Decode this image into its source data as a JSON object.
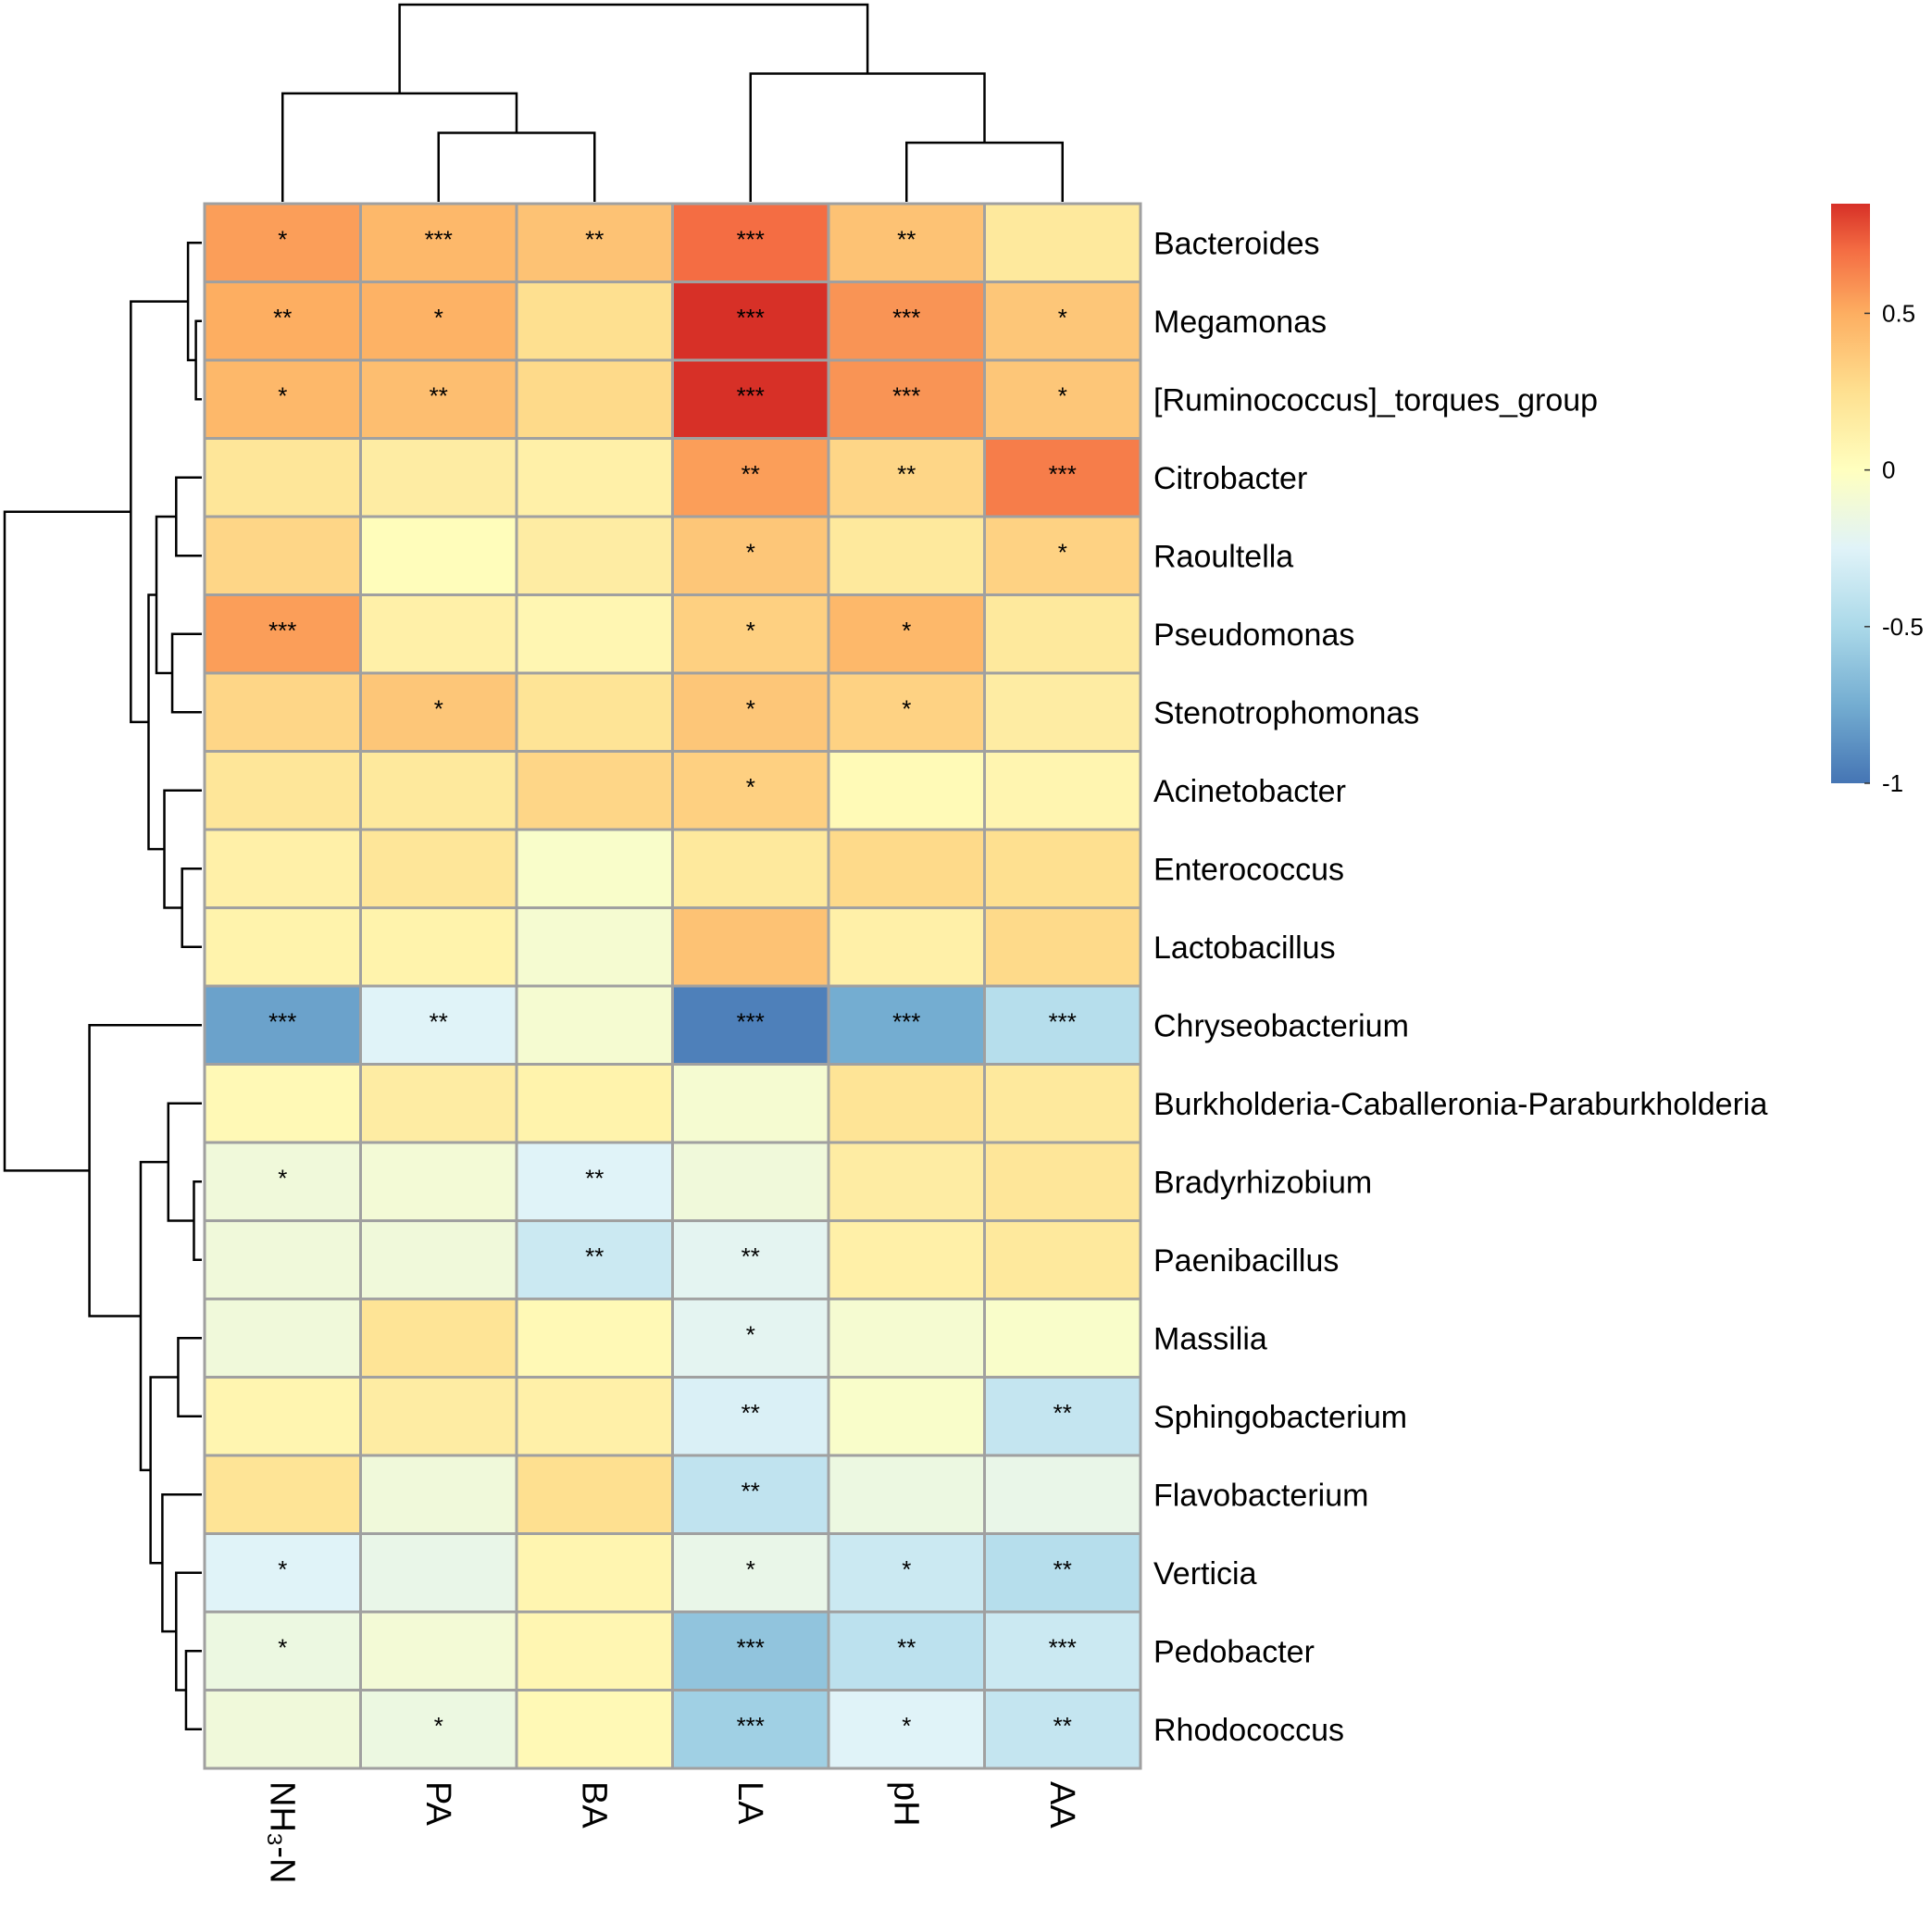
{
  "chart_data": {
    "type": "heatmap",
    "title": "",
    "xlabel": "",
    "ylabel": "",
    "columns": [
      "NH₃-N",
      "PA",
      "BA",
      "LA",
      "pH",
      "AA"
    ],
    "rows": [
      "Bacteroides",
      "Megamonas",
      "[Ruminococcus]_torques_group",
      "Citrobacter",
      "Raoultella",
      "Pseudomonas",
      "Stenotrophomonas",
      "Acinetobacter",
      "Enterococcus",
      "Lactobacillus",
      "Chryseobacterium",
      "Burkholderia-Caballeronia-Paraburkholderia",
      "Bradyrhizobium",
      "Paenibacillus",
      "Massilia",
      "Sphingobacterium",
      "Flavobacterium",
      "Verticia",
      "Pedobacter",
      "Rhodococcus"
    ],
    "values": [
      [
        0.55,
        0.45,
        0.4,
        0.7,
        0.4,
        0.18
      ],
      [
        0.5,
        0.48,
        0.25,
        0.85,
        0.58,
        0.38
      ],
      [
        0.45,
        0.42,
        0.28,
        0.86,
        0.58,
        0.38
      ],
      [
        0.2,
        0.15,
        0.12,
        0.55,
        0.3,
        0.65
      ],
      [
        0.3,
        0.02,
        0.15,
        0.38,
        0.18,
        0.32
      ],
      [
        0.55,
        0.12,
        0.07,
        0.33,
        0.45,
        0.18
      ],
      [
        0.3,
        0.38,
        0.22,
        0.38,
        0.32,
        0.15
      ],
      [
        0.2,
        0.18,
        0.3,
        0.33,
        0.04,
        0.08
      ],
      [
        0.12,
        0.2,
        -0.05,
        0.18,
        0.28,
        0.25
      ],
      [
        0.1,
        0.1,
        -0.08,
        0.4,
        0.12,
        0.28
      ],
      [
        -0.8,
        -0.25,
        -0.08,
        -0.95,
        -0.75,
        -0.45
      ],
      [
        0.05,
        0.15,
        0.1,
        -0.08,
        0.22,
        0.18
      ],
      [
        -0.12,
        -0.1,
        -0.25,
        -0.12,
        0.15,
        0.2
      ],
      [
        -0.12,
        -0.12,
        -0.35,
        -0.22,
        0.12,
        0.18
      ],
      [
        -0.12,
        0.22,
        0.05,
        -0.22,
        -0.08,
        -0.05
      ],
      [
        0.08,
        0.15,
        0.12,
        -0.28,
        -0.05,
        -0.38
      ],
      [
        0.22,
        -0.12,
        0.25,
        -0.4,
        -0.15,
        -0.18
      ],
      [
        -0.25,
        -0.18,
        0.08,
        -0.18,
        -0.35,
        -0.45
      ],
      [
        -0.15,
        -0.1,
        0.07,
        -0.62,
        -0.42,
        -0.35
      ],
      [
        -0.12,
        -0.15,
        0.05,
        -0.55,
        -0.25,
        -0.38
      ]
    ],
    "significance": [
      [
        "*",
        "***",
        "**",
        "***",
        "**",
        ""
      ],
      [
        "**",
        "*",
        "",
        "***",
        "***",
        "*"
      ],
      [
        "*",
        "**",
        "",
        "***",
        "***",
        "*"
      ],
      [
        "",
        "",
        "",
        "**",
        "**",
        "***"
      ],
      [
        "",
        "",
        "",
        "*",
        "",
        "*"
      ],
      [
        "***",
        "",
        "",
        "*",
        "*",
        ""
      ],
      [
        "",
        "*",
        "",
        "*",
        "*",
        ""
      ],
      [
        "",
        "",
        "",
        "*",
        "",
        ""
      ],
      [
        "",
        "",
        "",
        "",
        "",
        ""
      ],
      [
        "",
        "",
        "",
        "",
        "",
        ""
      ],
      [
        "***",
        "**",
        "",
        "***",
        "***",
        "***"
      ],
      [
        "",
        "",
        "",
        "",
        "",
        ""
      ],
      [
        "*",
        "",
        "**",
        "",
        "",
        ""
      ],
      [
        "",
        "",
        "**",
        "**",
        "",
        ""
      ],
      [
        "",
        "",
        "",
        "*",
        "",
        ""
      ],
      [
        "",
        "",
        "",
        "**",
        "",
        "**"
      ],
      [
        "",
        "",
        "",
        "**",
        "",
        ""
      ],
      [
        "*",
        "",
        "",
        "*",
        "*",
        "**"
      ],
      [
        "*",
        "",
        "",
        "***",
        "**",
        "***"
      ],
      [
        "",
        "*",
        "",
        "***",
        "*",
        "**"
      ]
    ],
    "colorscale": {
      "range": [
        -1,
        0.85
      ],
      "stops": [
        {
          "value": -1,
          "color": "#4575b4"
        },
        {
          "value": -0.75,
          "color": "#74add1"
        },
        {
          "value": -0.5,
          "color": "#abd9e9"
        },
        {
          "value": -0.25,
          "color": "#e0f3f8"
        },
        {
          "value": 0,
          "color": "#ffffbf"
        },
        {
          "value": 0.25,
          "color": "#fee090"
        },
        {
          "value": 0.5,
          "color": "#fdae61"
        },
        {
          "value": 0.7,
          "color": "#f46d43"
        },
        {
          "value": 0.85,
          "color": "#d73027"
        }
      ]
    },
    "legend": {
      "position": "right",
      "ticks": [
        {
          "value": 0.5,
          "label": "0.5"
        },
        {
          "value": 0,
          "label": "0"
        },
        {
          "value": -0.5,
          "label": "-0.5"
        },
        {
          "value": -1,
          "label": "-1"
        }
      ]
    },
    "col_dendrogram": {
      "order": [
        "NH₃-N",
        "PA",
        "BA",
        "LA",
        "pH",
        "AA"
      ],
      "merges": [
        {
          "a": "PA",
          "b": "BA",
          "height": 0.35
        },
        {
          "a": "pH",
          "b": "AA",
          "height": 0.3
        },
        {
          "a": "NH₃-N",
          "b": [
            "PA",
            "BA"
          ],
          "height": 0.55
        },
        {
          "a": "LA",
          "b": [
            "pH",
            "AA"
          ],
          "height": 0.65
        },
        {
          "a": [
            "NH₃-N",
            "PA",
            "BA"
          ],
          "b": [
            "LA",
            "pH",
            "AA"
          ],
          "height": 1.0
        }
      ]
    },
    "row_dendrogram": {
      "merges": [
        {
          "a": "Megamonas",
          "b": "[Ruminococcus]_torques_group",
          "height": 0.03
        },
        {
          "a": "Bacteroides",
          "b": [
            "Megamonas",
            "[Ruminococcus]_torques_group"
          ],
          "height": 0.07
        },
        {
          "a": "Citrobacter",
          "b": "Raoultella",
          "height": 0.13
        },
        {
          "a": "Pseudomonas",
          "b": "Stenotrophomonas",
          "height": 0.15
        },
        {
          "a": [
            "Citrobacter",
            "Raoultella"
          ],
          "b": [
            "Pseudomonas",
            "Stenotrophomonas"
          ],
          "height": 0.23
        },
        {
          "a": "Enterococcus",
          "b": "Lactobacillus",
          "height": 0.1
        },
        {
          "a": "Acinetobacter",
          "b": [
            "Enterococcus",
            "Lactobacillus"
          ],
          "height": 0.19
        },
        {
          "a": [
            "Citrobacter",
            "Raoultella",
            "Pseudomonas",
            "Stenotrophomonas"
          ],
          "b": [
            "Acinetobacter",
            "Enterococcus",
            "Lactobacillus"
          ],
          "height": 0.27
        },
        {
          "a": [
            "Bacteroides",
            "Megamonas",
            "[Ruminococcus]_torques_group"
          ],
          "b": [
            "Citrobacter",
            "Raoultella",
            "Pseudomonas",
            "Stenotrophomonas",
            "Acinetobacter",
            "Enterococcus",
            "Lactobacillus"
          ],
          "height": 0.36
        },
        {
          "a": "Bradyrhizobium",
          "b": "Paenibacillus",
          "height": 0.04
        },
        {
          "a": "Burkholderia-Caballeronia-Paraburkholderia",
          "b": [
            "Bradyrhizobium",
            "Paenibacillus"
          ],
          "height": 0.17
        },
        {
          "a": "Massilia",
          "b": "Sphingobacterium",
          "height": 0.12
        },
        {
          "a": "Pedobacter",
          "b": "Rhodococcus",
          "height": 0.08
        },
        {
          "a": "Verticia",
          "b": [
            "Pedobacter",
            "Rhodococcus"
          ],
          "height": 0.13
        },
        {
          "a": "Flavobacterium",
          "b": [
            "Verticia",
            "Pedobacter",
            "Rhodococcus"
          ],
          "height": 0.2
        },
        {
          "a": [
            "Massilia",
            "Sphingobacterium"
          ],
          "b": [
            "Flavobacterium",
            "Verticia",
            "Pedobacter",
            "Rhodococcus"
          ],
          "height": 0.26
        },
        {
          "a": [
            "Burkholderia-Caballeronia-Paraburkholderia",
            "Bradyrhizobium",
            "Paenibacillus"
          ],
          "b": [
            "Massilia",
            "Sphingobacterium",
            "Flavobacterium",
            "Verticia",
            "Pedobacter",
            "Rhodococcus"
          ],
          "height": 0.31
        },
        {
          "a": "Chryseobacterium",
          "b": [
            "Burkholderia-Caballeronia-Paraburkholderia",
            "Bradyrhizobium",
            "Paenibacillus",
            "Massilia",
            "Sphingobacterium",
            "Flavobacterium",
            "Verticia",
            "Pedobacter",
            "Rhodococcus"
          ],
          "height": 0.57
        },
        {
          "a": [
            "Bacteroides",
            "Megamonas",
            "[Ruminococcus]_torques_group",
            "Citrobacter",
            "Raoultella",
            "Pseudomonas",
            "Stenotrophomonas",
            "Acinetobacter",
            "Enterococcus",
            "Lactobacillus"
          ],
          "b": [
            "Chryseobacterium",
            "Burkholderia-Caballeronia-Paraburkholderia",
            "Bradyrhizobium",
            "Paenibacillus",
            "Massilia",
            "Sphingobacterium",
            "Flavobacterium",
            "Verticia",
            "Pedobacter",
            "Rhodococcus"
          ],
          "height": 1.0
        }
      ]
    }
  }
}
